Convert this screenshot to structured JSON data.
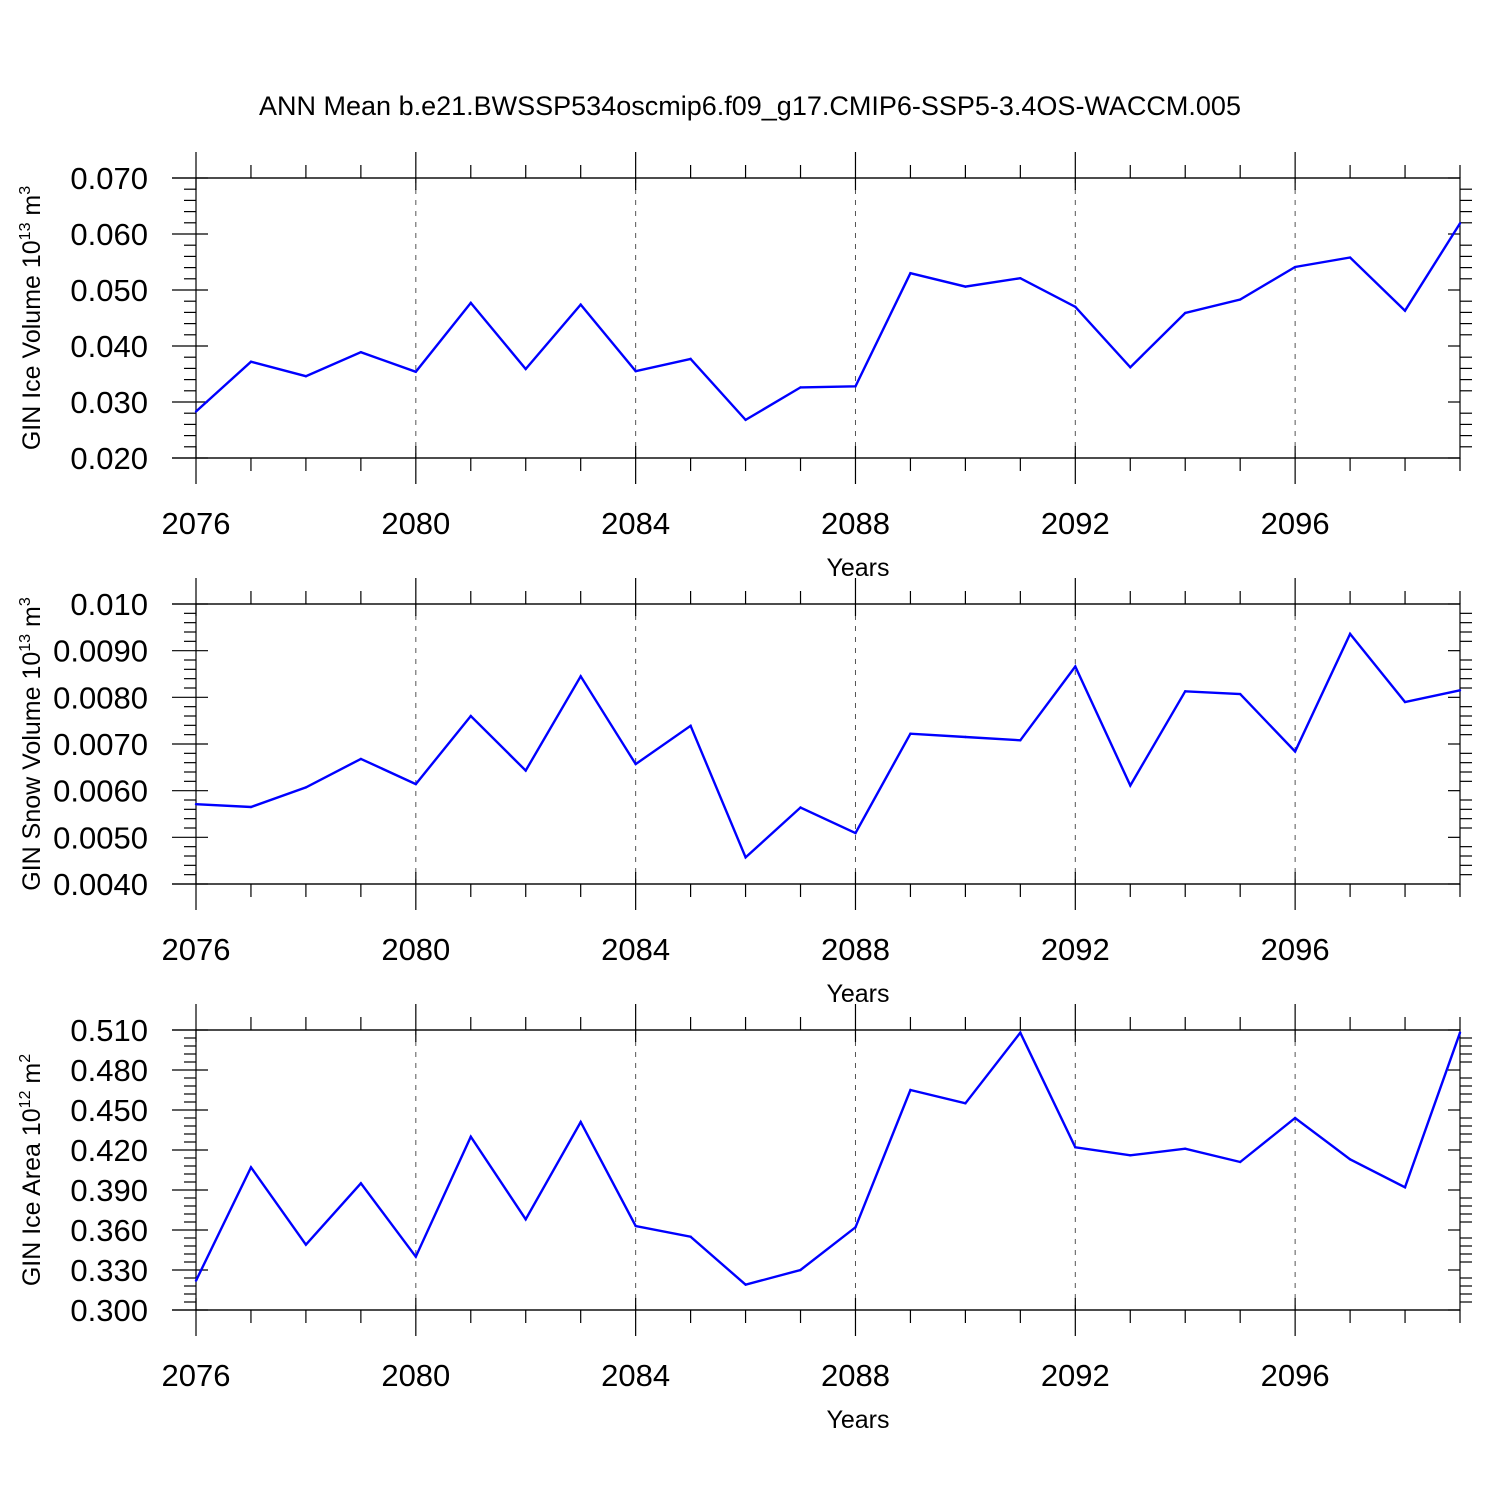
{
  "title": "ANN Mean b.e21.BWSSP534oscmip6.f09_g17.CMIP6-SSP5-3.4OS-WACCM.005",
  "colors": {
    "line": "#0000ff",
    "axis": "#000000",
    "grid": "#555555"
  },
  "chart_data": [
    {
      "type": "line",
      "ylabel": "GIN Ice Volume 10",
      "ylabel_exp": "13",
      "ylabel_unit": " m",
      "ylabel_unit_exp": "3",
      "xlabel": "Years",
      "xlim": [
        2076,
        2099
      ],
      "ylim": [
        0.02,
        0.07
      ],
      "xticks": [
        "2076",
        "2080",
        "2084",
        "2088",
        "2092",
        "2096"
      ],
      "xtick_values": [
        2076,
        2080,
        2084,
        2088,
        2092,
        2096
      ],
      "yticks": [
        "0.020",
        "0.030",
        "0.040",
        "0.050",
        "0.060",
        "0.070"
      ],
      "ytick_values": [
        0.02,
        0.03,
        0.04,
        0.05,
        0.06,
        0.07
      ],
      "x": [
        2076,
        2077,
        2078,
        2079,
        2080,
        2081,
        2082,
        2083,
        2084,
        2085,
        2086,
        2087,
        2088,
        2089,
        2090,
        2091,
        2092,
        2093,
        2094,
        2095,
        2096,
        2097,
        2098,
        2099
      ],
      "values": [
        0.0283,
        0.0372,
        0.0346,
        0.0389,
        0.0354,
        0.0477,
        0.0359,
        0.0474,
        0.0355,
        0.0377,
        0.0268,
        0.0326,
        0.0328,
        0.053,
        0.0506,
        0.0521,
        0.047,
        0.0362,
        0.0459,
        0.0483,
        0.0541,
        0.0558,
        0.0463,
        0.0619
      ]
    },
    {
      "type": "line",
      "ylabel": "GIN Snow Volume 10",
      "ylabel_exp": "13",
      "ylabel_unit": " m",
      "ylabel_unit_exp": "3",
      "xlabel": "Years",
      "xlim": [
        2076,
        2099
      ],
      "ylim": [
        0.004,
        0.01
      ],
      "xticks": [
        "2076",
        "2080",
        "2084",
        "2088",
        "2092",
        "2096"
      ],
      "xtick_values": [
        2076,
        2080,
        2084,
        2088,
        2092,
        2096
      ],
      "yticks": [
        "0.0040",
        "0.0050",
        "0.0060",
        "0.0070",
        "0.0080",
        "0.0090",
        "0.010"
      ],
      "ytick_values": [
        0.004,
        0.005,
        0.006,
        0.007,
        0.008,
        0.009,
        0.01
      ],
      "x": [
        2076,
        2077,
        2078,
        2079,
        2080,
        2081,
        2082,
        2083,
        2084,
        2085,
        2086,
        2087,
        2088,
        2089,
        2090,
        2091,
        2092,
        2093,
        2094,
        2095,
        2096,
        2097,
        2098,
        2099
      ],
      "values": [
        0.00571,
        0.00565,
        0.00607,
        0.00668,
        0.00614,
        0.0076,
        0.00643,
        0.00845,
        0.00657,
        0.00739,
        0.00457,
        0.00564,
        0.00509,
        0.00722,
        0.00715,
        0.00708,
        0.00866,
        0.00611,
        0.00813,
        0.00807,
        0.00684,
        0.00936,
        0.0079,
        0.00815
      ]
    },
    {
      "type": "line",
      "ylabel": "GIN Ice Area 10",
      "ylabel_exp": "12",
      "ylabel_unit": " m",
      "ylabel_unit_exp": "2",
      "xlabel": "Years",
      "xlim": [
        2076,
        2099
      ],
      "ylim": [
        0.3,
        0.51
      ],
      "xticks": [
        "2076",
        "2080",
        "2084",
        "2088",
        "2092",
        "2096"
      ],
      "xtick_values": [
        2076,
        2080,
        2084,
        2088,
        2092,
        2096
      ],
      "yticks": [
        "0.300",
        "0.330",
        "0.360",
        "0.390",
        "0.420",
        "0.450",
        "0.480",
        "0.510"
      ],
      "ytick_values": [
        0.3,
        0.33,
        0.36,
        0.39,
        0.42,
        0.45,
        0.48,
        0.51
      ],
      "x": [
        2076,
        2077,
        2078,
        2079,
        2080,
        2081,
        2082,
        2083,
        2084,
        2085,
        2086,
        2087,
        2088,
        2089,
        2090,
        2091,
        2092,
        2093,
        2094,
        2095,
        2096,
        2097,
        2098,
        2099
      ],
      "values": [
        0.322,
        0.407,
        0.349,
        0.395,
        0.34,
        0.43,
        0.368,
        0.441,
        0.363,
        0.355,
        0.319,
        0.33,
        0.362,
        0.465,
        0.455,
        0.508,
        0.422,
        0.416,
        0.421,
        0.411,
        0.444,
        0.413,
        0.392,
        0.508
      ]
    }
  ]
}
